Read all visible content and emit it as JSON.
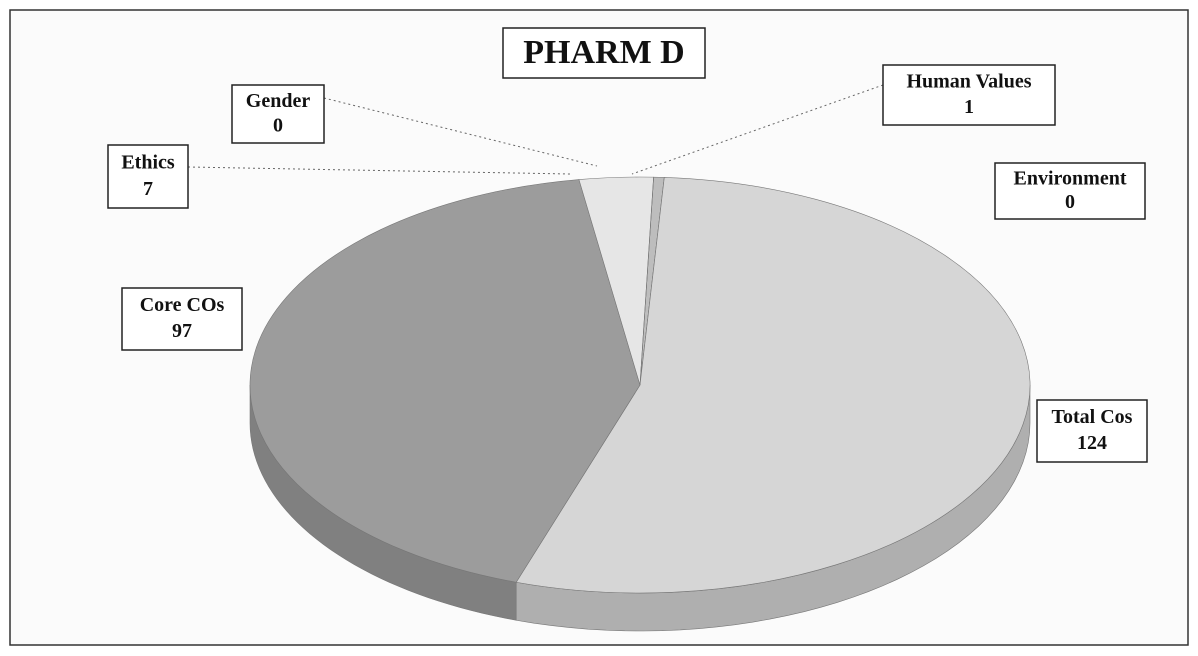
{
  "chart_data": {
    "type": "pie3d",
    "title": "PHARM D",
    "categories": [
      "Human Values",
      "Environment",
      "Total Cos",
      "Core COs",
      "Ethics",
      "Gender"
    ],
    "values": [
      1,
      0,
      124,
      97,
      7,
      0
    ],
    "colors": [
      "#bdbdbd",
      "#cfcfcf",
      "#d6d6d6",
      "#9c9c9c",
      "#e6e6e6",
      "#c8c8c8"
    ]
  }
}
